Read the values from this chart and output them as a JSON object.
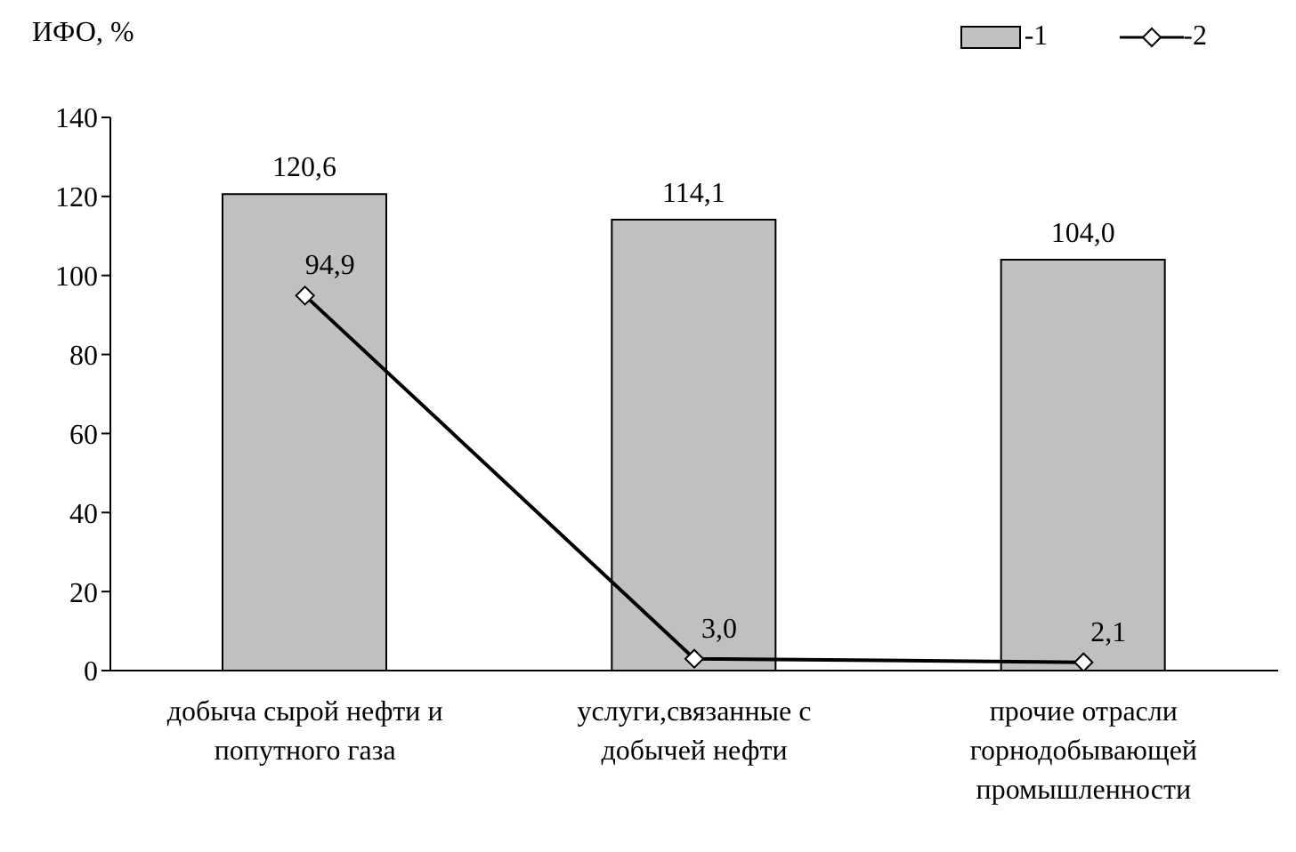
{
  "chart_data": {
    "type": "bar",
    "ylabel": "ИФО, %",
    "categories": [
      "добыча сырой нефти и\nпопутного газа",
      "услуги,связанные с\nдобычей нефти",
      "прочие отрасли\nгорнодобывающей\nпромышленности"
    ],
    "series": [
      {
        "name": "-1",
        "color": "#c0c0c0",
        "values": [
          120.6,
          114.1,
          104.0
        ],
        "value_labels": [
          "120,6",
          "114,1",
          "104,0"
        ]
      },
      {
        "name": "-2",
        "type": "line",
        "color": "#000000",
        "marker": "diamond",
        "values": [
          94.9,
          3.0,
          2.1
        ],
        "value_labels": [
          "94,9",
          "3,0",
          "2,1"
        ]
      }
    ],
    "ylim": [
      0,
      140
    ],
    "yticks": [
      0,
      20,
      40,
      60,
      80,
      100,
      120,
      140
    ],
    "grid": false,
    "legend": "top right"
  }
}
